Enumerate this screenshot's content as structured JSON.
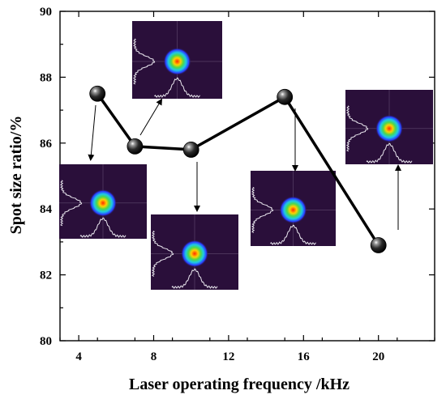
{
  "chart_data": {
    "type": "scatter",
    "xlabel": "Laser operating frequency /kHz",
    "ylabel": "Spot size ratio/%",
    "x_ticks": [
      4,
      8,
      12,
      16,
      20
    ],
    "y_ticks": [
      80,
      82,
      84,
      86,
      88,
      90
    ],
    "xlim": [
      3,
      23
    ],
    "ylim": [
      80,
      90
    ],
    "series": [
      {
        "points": [
          {
            "x": 5,
            "y": 87.5
          },
          {
            "x": 7,
            "y": 85.9
          },
          {
            "x": 10,
            "y": 85.8
          },
          {
            "x": 15,
            "y": 87.4
          },
          {
            "x": 20,
            "y": 82.9
          }
        ]
      }
    ],
    "insets": [
      {
        "point_index": 0,
        "content": "beam spot profile image"
      },
      {
        "point_index": 1,
        "content": "beam spot profile image"
      },
      {
        "point_index": 2,
        "content": "beam spot profile image"
      },
      {
        "point_index": 3,
        "content": "beam spot profile image"
      },
      {
        "point_index": 4,
        "content": "beam spot profile image"
      }
    ],
    "grid": false,
    "legend": "none",
    "colors": {
      "line": "#000000",
      "marker": "#1a1a1a",
      "inset_background": "#2a0f3a"
    }
  }
}
